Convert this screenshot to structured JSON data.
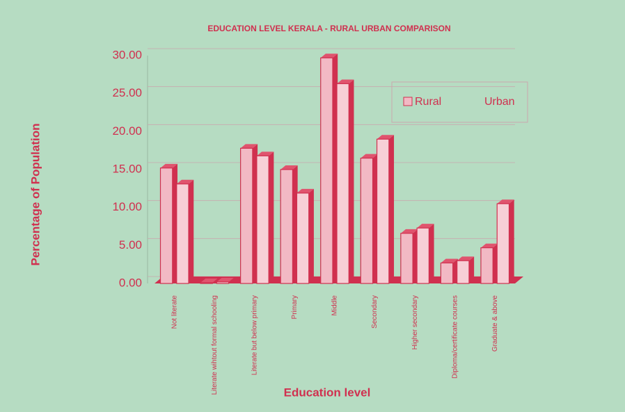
{
  "chart_data": {
    "type": "bar3d",
    "title": "EDUCATION LEVEL KERALA - RURAL URBAN COMPARISON",
    "y_label": "Percentage of Population",
    "x_label": "Education level",
    "categories": [
      "Not literate",
      "Literate wihtout formal schooling",
      "Literate but below primary",
      "Primary",
      "Middle",
      "Secondary",
      "Higher secondary",
      "Diploma/certificate courses",
      "Graduate & above"
    ],
    "series": [
      {
        "name": "Rural",
        "color": "#f2b9c4",
        "values": [
          15.2,
          0.1,
          17.8,
          15.0,
          29.7,
          16.5,
          6.6,
          2.7,
          4.7
        ]
      },
      {
        "name": "Urban",
        "color": "#f7cfd6",
        "values": [
          13.1,
          0.2,
          16.8,
          11.9,
          26.3,
          19.0,
          7.3,
          3.0,
          10.5
        ]
      }
    ],
    "ylim": [
      0,
      30
    ],
    "yticks": [
      {
        "value": 0,
        "label": "0.00"
      },
      {
        "value": 5,
        "label": "5.00"
      },
      {
        "value": 10,
        "label": "10.00"
      },
      {
        "value": 15,
        "label": "15.00"
      },
      {
        "value": 20,
        "label": "20.00"
      },
      {
        "value": 25,
        "label": "25.00"
      },
      {
        "value": 30,
        "label": "30.00"
      }
    ],
    "grid": true,
    "legend": "upper-right"
  }
}
